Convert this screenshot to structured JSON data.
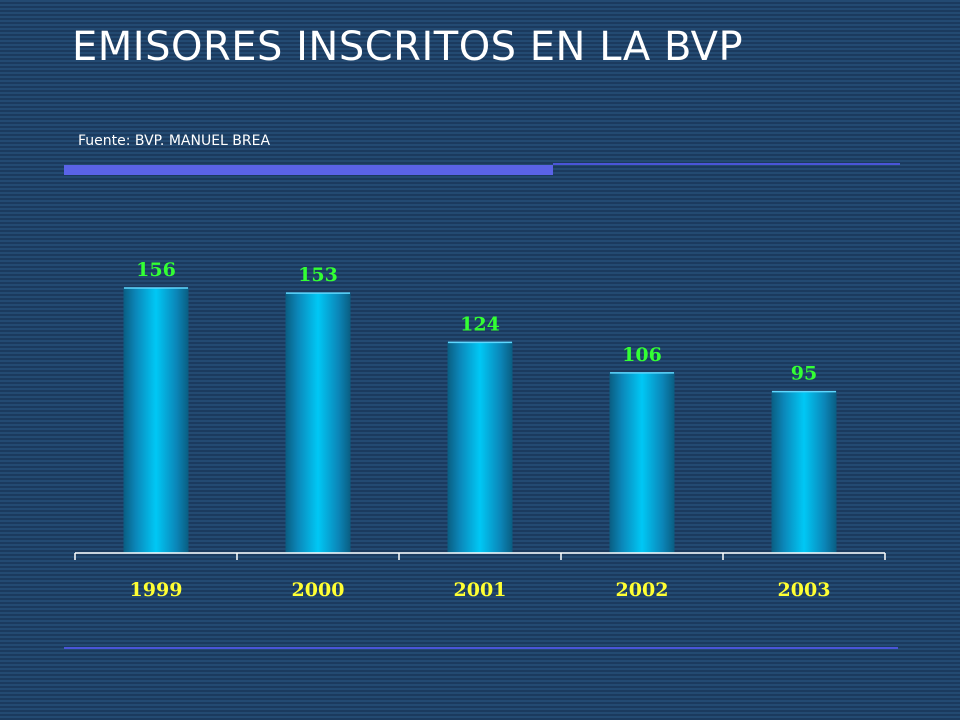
{
  "header": {
    "title": "EMISORES INSCRITOS EN LA BVP",
    "source": "Fuente: BVP. MANUEL BREA"
  },
  "colors": {
    "background": "#1f4066",
    "bar": "#00c8f5",
    "bar_edge": "#0a5f84",
    "value_label": "#33ff33",
    "category_label": "#ffff33",
    "accent_rule": "#5a63e8",
    "axis": "#ffffff"
  },
  "chart_data": {
    "type": "bar",
    "title": "",
    "xlabel": "",
    "ylabel": "",
    "categories": [
      "1999",
      "2000",
      "2001",
      "2002",
      "2003"
    ],
    "values": [
      156,
      153,
      124,
      106,
      95
    ],
    "ylim": [
      0,
      156
    ],
    "grid": false,
    "legend": "none"
  }
}
